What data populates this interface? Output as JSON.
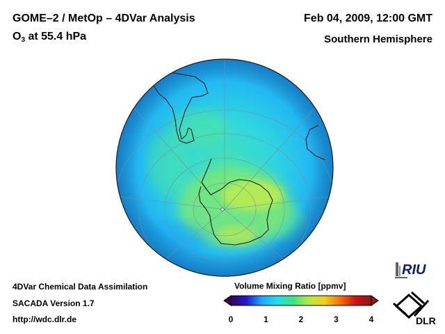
{
  "header": {
    "title": "GOME–2 / MetOp – 4DVar Analysis",
    "species_main": "O",
    "species_sub": "3",
    "level": " at 55.4 hPa",
    "datetime": "Feb 04, 2009, 12:00 GMT",
    "region": "Southern Hemisphere"
  },
  "footer": {
    "line1": "4DVar Chemical Data Assimilation",
    "line2": "SACADA Version 1.7",
    "line3": "http://wdc.dlr.de"
  },
  "colorbar": {
    "title": "Volume Mixing Ratio [ppmv]",
    "ticks": [
      "0",
      "1",
      "2",
      "3",
      "4"
    ],
    "tick_values": [
      0,
      1,
      2,
      3,
      4
    ],
    "min": 0,
    "max": 4,
    "colors": [
      "#3d0057",
      "#1b1bd0",
      "#1fa8ff",
      "#20e0e6",
      "#40e080",
      "#b8e845",
      "#f0d020",
      "#f07010",
      "#d01010",
      "#8a1a1a"
    ]
  },
  "logos": {
    "riu": "RIU",
    "dlr": "DLR"
  }
}
